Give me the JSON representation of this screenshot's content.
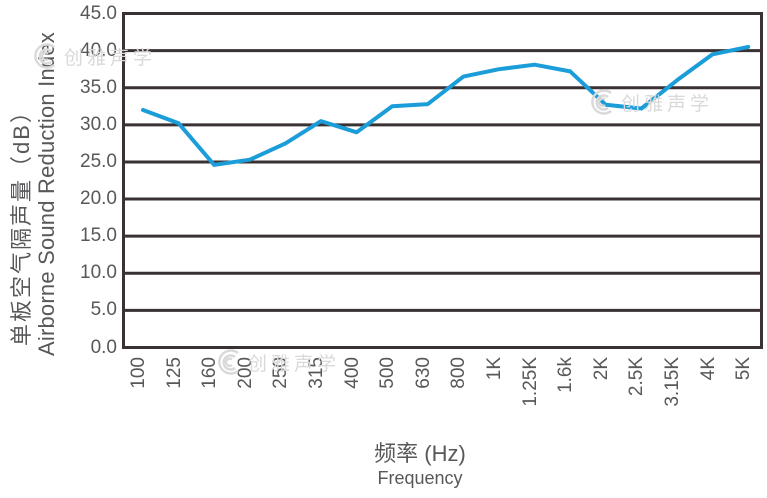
{
  "watermark": {
    "text": "创雅声学"
  },
  "chart_data": {
    "type": "line",
    "categories": [
      "100",
      "125",
      "160",
      "200",
      "250",
      "315",
      "400",
      "500",
      "630",
      "800",
      "1K",
      "1.25K",
      "1.6k",
      "2K",
      "2.5K",
      "3.15K",
      "4K",
      "5K"
    ],
    "values": [
      32.0,
      30.2,
      24.6,
      25.3,
      27.5,
      30.5,
      29.0,
      32.5,
      32.8,
      36.5,
      37.5,
      38.1,
      37.2,
      32.7,
      32.2,
      36.0,
      39.5,
      40.5
    ],
    "xlabel_cn": "频率 (Hz)",
    "xlabel_en": "Frequency",
    "ylabel_cn": "单板空气隔声量（dB）",
    "ylabel_en": "Airborne Sound Reduction Index",
    "ylim": [
      0,
      45
    ],
    "y_tick_labels": [
      "45.0",
      "40.0",
      "35.0",
      "30.0",
      "25.0",
      "20.0",
      "15.0",
      "10.0",
      "5.0",
      "0.0"
    ],
    "grid": "horizontal",
    "legend": "none",
    "line_color": "#1b9dd9",
    "grid_color": "#3a3133",
    "text_color": "#58585a",
    "watermark_color": "#d9d9d9"
  }
}
